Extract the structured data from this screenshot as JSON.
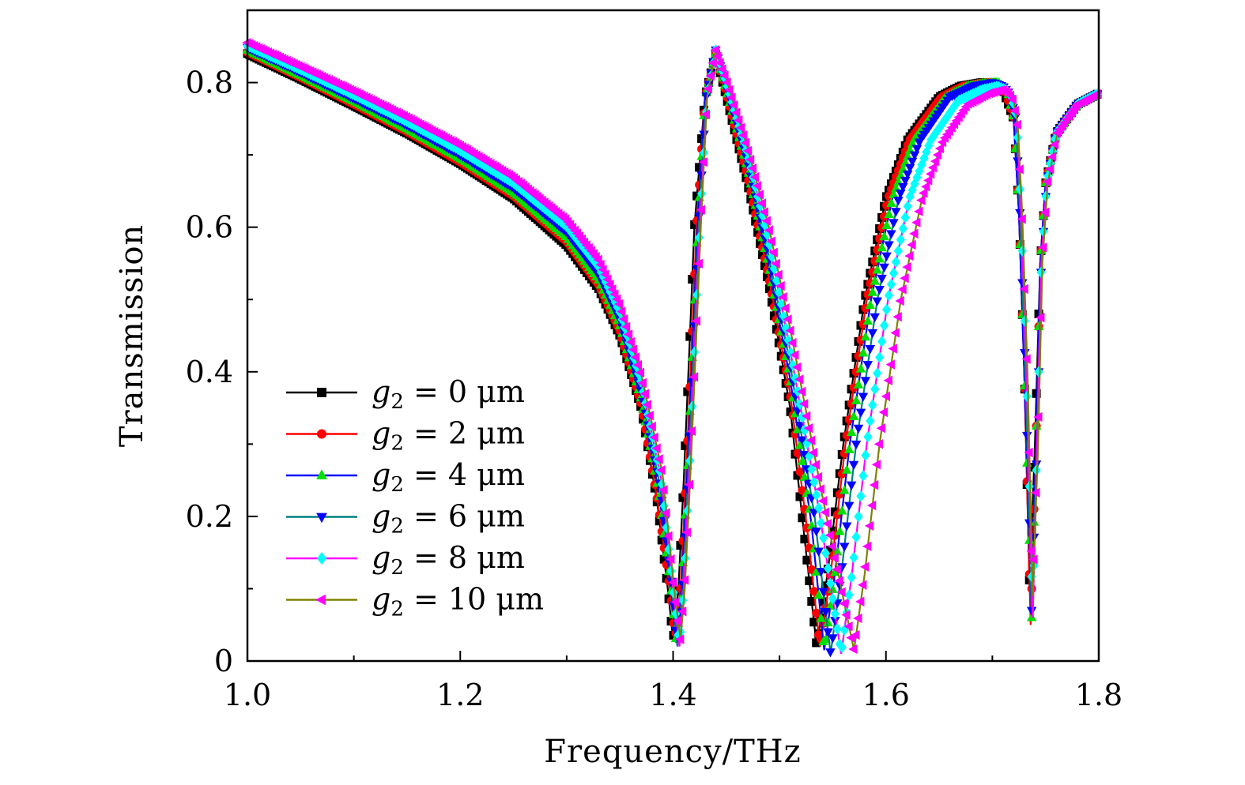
{
  "chart_data": {
    "type": "line",
    "title": "",
    "xlabel": "Frequency/THz",
    "ylabel": "Transmission",
    "xlim": [
      1.0,
      1.8
    ],
    "ylim": [
      0,
      0.9
    ],
    "xticks": [
      1.0,
      1.2,
      1.4,
      1.6,
      1.8
    ],
    "xtick_labels": [
      "1.0",
      "1.2",
      "1.4",
      "1.6",
      "1.8"
    ],
    "yticks": [
      0,
      0.2,
      0.4,
      0.6,
      0.8
    ],
    "ytick_labels": [
      "0",
      "0.2",
      "0.4",
      "0.6",
      "0.8"
    ],
    "grid": false,
    "legend_position": "bottom-left",
    "series": [
      {
        "name": "g2 = 0 μm",
        "legend": {
          "symbol": "g",
          "subscript": "2",
          "rest": " = 0 μm"
        },
        "color": "#000000",
        "marker": "square",
        "points": [
          [
            1.0,
            0.84
          ],
          [
            1.05,
            0.805
          ],
          [
            1.1,
            0.768
          ],
          [
            1.15,
            0.73
          ],
          [
            1.2,
            0.688
          ],
          [
            1.25,
            0.64
          ],
          [
            1.3,
            0.575
          ],
          [
            1.33,
            0.515
          ],
          [
            1.35,
            0.45
          ],
          [
            1.37,
            0.35
          ],
          [
            1.385,
            0.22
          ],
          [
            1.395,
            0.1
          ],
          [
            1.4,
            0.03
          ],
          [
            1.405,
            0.1
          ],
          [
            1.41,
            0.25
          ],
          [
            1.415,
            0.42
          ],
          [
            1.42,
            0.6
          ],
          [
            1.43,
            0.78
          ],
          [
            1.44,
            0.84
          ],
          [
            1.45,
            0.78
          ],
          [
            1.47,
            0.66
          ],
          [
            1.49,
            0.52
          ],
          [
            1.51,
            0.35
          ],
          [
            1.525,
            0.15
          ],
          [
            1.535,
            0.02
          ],
          [
            1.545,
            0.12
          ],
          [
            1.56,
            0.3
          ],
          [
            1.58,
            0.5
          ],
          [
            1.6,
            0.64
          ],
          [
            1.62,
            0.72
          ],
          [
            1.65,
            0.78
          ],
          [
            1.67,
            0.795
          ],
          [
            1.69,
            0.8
          ],
          [
            1.7,
            0.8
          ],
          [
            1.71,
            0.79
          ],
          [
            1.72,
            0.75
          ],
          [
            1.725,
            0.62
          ],
          [
            1.73,
            0.4
          ],
          [
            1.735,
            0.1
          ],
          [
            1.74,
            0.3
          ],
          [
            1.745,
            0.55
          ],
          [
            1.75,
            0.66
          ],
          [
            1.76,
            0.73
          ],
          [
            1.78,
            0.77
          ],
          [
            1.8,
            0.785
          ]
        ]
      },
      {
        "name": "g2 = 2 μm",
        "legend": {
          "symbol": "g",
          "subscript": "2",
          "rest": " = 2 μm"
        },
        "color": "#ff0000",
        "marker": "circle",
        "points": [
          [
            1.0,
            0.842
          ],
          [
            1.05,
            0.807
          ],
          [
            1.1,
            0.77
          ],
          [
            1.15,
            0.732
          ],
          [
            1.2,
            0.69
          ],
          [
            1.25,
            0.643
          ],
          [
            1.3,
            0.58
          ],
          [
            1.33,
            0.52
          ],
          [
            1.35,
            0.456
          ],
          [
            1.37,
            0.355
          ],
          [
            1.385,
            0.225
          ],
          [
            1.397,
            0.1
          ],
          [
            1.402,
            0.03
          ],
          [
            1.407,
            0.1
          ],
          [
            1.412,
            0.25
          ],
          [
            1.417,
            0.42
          ],
          [
            1.422,
            0.6
          ],
          [
            1.43,
            0.78
          ],
          [
            1.44,
            0.84
          ],
          [
            1.45,
            0.785
          ],
          [
            1.47,
            0.67
          ],
          [
            1.49,
            0.53
          ],
          [
            1.51,
            0.37
          ],
          [
            1.527,
            0.17
          ],
          [
            1.538,
            0.02
          ],
          [
            1.548,
            0.12
          ],
          [
            1.562,
            0.3
          ],
          [
            1.582,
            0.5
          ],
          [
            1.602,
            0.64
          ],
          [
            1.622,
            0.72
          ],
          [
            1.652,
            0.78
          ],
          [
            1.672,
            0.795
          ],
          [
            1.692,
            0.8
          ],
          [
            1.702,
            0.8
          ],
          [
            1.712,
            0.79
          ],
          [
            1.72,
            0.75
          ],
          [
            1.725,
            0.62
          ],
          [
            1.73,
            0.4
          ],
          [
            1.736,
            0.05
          ],
          [
            1.741,
            0.3
          ],
          [
            1.745,
            0.55
          ],
          [
            1.75,
            0.66
          ],
          [
            1.76,
            0.73
          ],
          [
            1.78,
            0.77
          ],
          [
            1.8,
            0.785
          ]
        ]
      },
      {
        "name": "g2 = 4 μm",
        "legend": {
          "symbol": "g",
          "subscript": "2",
          "rest": " = 4 μm"
        },
        "color": "#0000ff",
        "marker": "triangle-up",
        "marker_color": "#00e000",
        "points": [
          [
            1.0,
            0.845
          ],
          [
            1.05,
            0.81
          ],
          [
            1.1,
            0.774
          ],
          [
            1.15,
            0.736
          ],
          [
            1.2,
            0.695
          ],
          [
            1.25,
            0.648
          ],
          [
            1.3,
            0.586
          ],
          [
            1.33,
            0.527
          ],
          [
            1.35,
            0.463
          ],
          [
            1.37,
            0.362
          ],
          [
            1.387,
            0.23
          ],
          [
            1.398,
            0.1
          ],
          [
            1.403,
            0.025
          ],
          [
            1.408,
            0.1
          ],
          [
            1.413,
            0.25
          ],
          [
            1.418,
            0.42
          ],
          [
            1.423,
            0.6
          ],
          [
            1.43,
            0.78
          ],
          [
            1.44,
            0.84
          ],
          [
            1.45,
            0.79
          ],
          [
            1.47,
            0.68
          ],
          [
            1.49,
            0.545
          ],
          [
            1.51,
            0.39
          ],
          [
            1.53,
            0.19
          ],
          [
            1.542,
            0.015
          ],
          [
            1.552,
            0.12
          ],
          [
            1.566,
            0.3
          ],
          [
            1.586,
            0.5
          ],
          [
            1.606,
            0.64
          ],
          [
            1.626,
            0.72
          ],
          [
            1.656,
            0.78
          ],
          [
            1.676,
            0.795
          ],
          [
            1.696,
            0.8
          ],
          [
            1.706,
            0.8
          ],
          [
            1.714,
            0.79
          ],
          [
            1.72,
            0.75
          ],
          [
            1.725,
            0.62
          ],
          [
            1.73,
            0.4
          ],
          [
            1.737,
            0.06
          ],
          [
            1.741,
            0.3
          ],
          [
            1.745,
            0.55
          ],
          [
            1.75,
            0.66
          ],
          [
            1.76,
            0.73
          ],
          [
            1.78,
            0.77
          ],
          [
            1.8,
            0.785
          ]
        ]
      },
      {
        "name": "g2 = 6 μm",
        "legend": {
          "symbol": "g",
          "subscript": "2",
          "rest": " = 6 μm"
        },
        "color": "#008080",
        "marker": "triangle-down",
        "marker_color": "#0000ff",
        "points": [
          [
            1.0,
            0.848
          ],
          [
            1.05,
            0.814
          ],
          [
            1.1,
            0.778
          ],
          [
            1.15,
            0.741
          ],
          [
            1.2,
            0.7
          ],
          [
            1.25,
            0.654
          ],
          [
            1.3,
            0.593
          ],
          [
            1.33,
            0.535
          ],
          [
            1.35,
            0.472
          ],
          [
            1.37,
            0.372
          ],
          [
            1.388,
            0.24
          ],
          [
            1.399,
            0.1
          ],
          [
            1.404,
            0.02
          ],
          [
            1.409,
            0.1
          ],
          [
            1.414,
            0.25
          ],
          [
            1.419,
            0.42
          ],
          [
            1.424,
            0.6
          ],
          [
            1.431,
            0.78
          ],
          [
            1.44,
            0.845
          ],
          [
            1.45,
            0.795
          ],
          [
            1.47,
            0.69
          ],
          [
            1.49,
            0.56
          ],
          [
            1.51,
            0.41
          ],
          [
            1.533,
            0.2
          ],
          [
            1.548,
            0.01
          ],
          [
            1.558,
            0.12
          ],
          [
            1.572,
            0.3
          ],
          [
            1.592,
            0.5
          ],
          [
            1.612,
            0.64
          ],
          [
            1.632,
            0.72
          ],
          [
            1.66,
            0.78
          ],
          [
            1.682,
            0.795
          ],
          [
            1.7,
            0.8
          ],
          [
            1.71,
            0.795
          ],
          [
            1.716,
            0.785
          ],
          [
            1.722,
            0.75
          ],
          [
            1.726,
            0.62
          ],
          [
            1.731,
            0.4
          ],
          [
            1.737,
            0.07
          ],
          [
            1.742,
            0.3
          ],
          [
            1.746,
            0.55
          ],
          [
            1.751,
            0.66
          ],
          [
            1.76,
            0.73
          ],
          [
            1.78,
            0.77
          ],
          [
            1.8,
            0.785
          ]
        ]
      },
      {
        "name": "g2 = 8 μm",
        "legend": {
          "symbol": "g",
          "subscript": "2",
          "rest": " = 8 μm"
        },
        "color": "#ff00ff",
        "marker": "diamond",
        "marker_color": "#00ffff",
        "points": [
          [
            1.0,
            0.851
          ],
          [
            1.05,
            0.818
          ],
          [
            1.1,
            0.783
          ],
          [
            1.15,
            0.746
          ],
          [
            1.2,
            0.706
          ],
          [
            1.25,
            0.661
          ],
          [
            1.3,
            0.601
          ],
          [
            1.33,
            0.545
          ],
          [
            1.35,
            0.482
          ],
          [
            1.37,
            0.385
          ],
          [
            1.389,
            0.25
          ],
          [
            1.4,
            0.1
          ],
          [
            1.406,
            0.02
          ],
          [
            1.41,
            0.1
          ],
          [
            1.415,
            0.25
          ],
          [
            1.42,
            0.42
          ],
          [
            1.425,
            0.6
          ],
          [
            1.432,
            0.78
          ],
          [
            1.44,
            0.845
          ],
          [
            1.45,
            0.8
          ],
          [
            1.47,
            0.7
          ],
          [
            1.49,
            0.58
          ],
          [
            1.51,
            0.43
          ],
          [
            1.537,
            0.21
          ],
          [
            1.558,
            0.01
          ],
          [
            1.568,
            0.12
          ],
          [
            1.582,
            0.3
          ],
          [
            1.602,
            0.5
          ],
          [
            1.622,
            0.64
          ],
          [
            1.642,
            0.72
          ],
          [
            1.668,
            0.775
          ],
          [
            1.69,
            0.79
          ],
          [
            1.705,
            0.795
          ],
          [
            1.713,
            0.79
          ],
          [
            1.718,
            0.78
          ],
          [
            1.723,
            0.75
          ],
          [
            1.727,
            0.62
          ],
          [
            1.732,
            0.4
          ],
          [
            1.738,
            0.06
          ],
          [
            1.742,
            0.3
          ],
          [
            1.746,
            0.55
          ],
          [
            1.751,
            0.66
          ],
          [
            1.76,
            0.73
          ],
          [
            1.78,
            0.77
          ],
          [
            1.8,
            0.785
          ]
        ]
      },
      {
        "name": "g2 = 10 μm",
        "legend": {
          "symbol": "g",
          "subscript": "2",
          "rest": " = 10 μm"
        },
        "color": "#808000",
        "marker": "triangle-left",
        "marker_color": "#ff00ff",
        "points": [
          [
            1.0,
            0.855
          ],
          [
            1.05,
            0.822
          ],
          [
            1.1,
            0.788
          ],
          [
            1.15,
            0.752
          ],
          [
            1.2,
            0.713
          ],
          [
            1.25,
            0.669
          ],
          [
            1.3,
            0.61
          ],
          [
            1.33,
            0.555
          ],
          [
            1.35,
            0.493
          ],
          [
            1.37,
            0.397
          ],
          [
            1.39,
            0.26
          ],
          [
            1.401,
            0.1
          ],
          [
            1.407,
            0.03
          ],
          [
            1.411,
            0.1
          ],
          [
            1.416,
            0.25
          ],
          [
            1.421,
            0.42
          ],
          [
            1.426,
            0.6
          ],
          [
            1.432,
            0.78
          ],
          [
            1.44,
            0.845
          ],
          [
            1.45,
            0.805
          ],
          [
            1.47,
            0.71
          ],
          [
            1.49,
            0.6
          ],
          [
            1.51,
            0.46
          ],
          [
            1.54,
            0.23
          ],
          [
            1.57,
            0.015
          ],
          [
            1.58,
            0.12
          ],
          [
            1.594,
            0.3
          ],
          [
            1.614,
            0.5
          ],
          [
            1.634,
            0.64
          ],
          [
            1.654,
            0.72
          ],
          [
            1.677,
            0.77
          ],
          [
            1.697,
            0.785
          ],
          [
            1.71,
            0.79
          ],
          [
            1.716,
            0.785
          ],
          [
            1.72,
            0.775
          ],
          [
            1.724,
            0.74
          ],
          [
            1.728,
            0.62
          ],
          [
            1.733,
            0.4
          ],
          [
            1.738,
            0.09
          ],
          [
            1.743,
            0.3
          ],
          [
            1.747,
            0.55
          ],
          [
            1.752,
            0.66
          ],
          [
            1.761,
            0.73
          ],
          [
            1.78,
            0.77
          ],
          [
            1.8,
            0.785
          ]
        ]
      }
    ]
  }
}
